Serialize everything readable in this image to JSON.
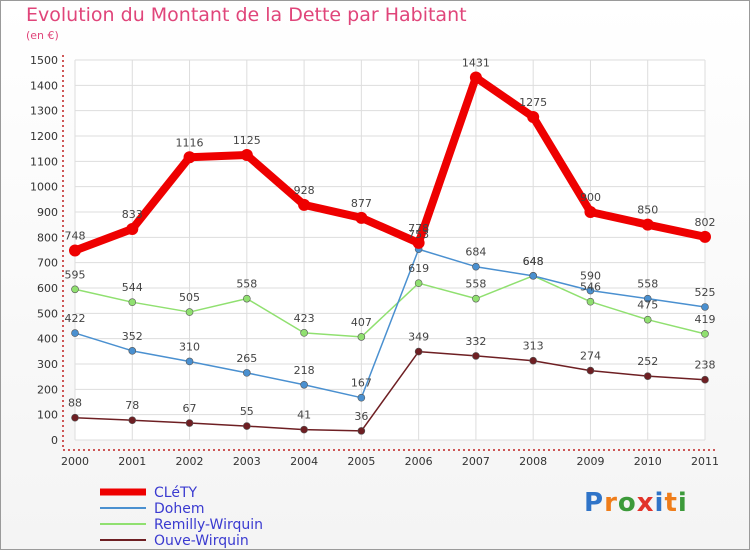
{
  "header": {
    "title": "Evolution du Montant de la Dette par Habitant",
    "subtitle": "(en €)"
  },
  "logo": {
    "letters": [
      "P",
      "r",
      "o",
      "x",
      "i",
      "t",
      "i"
    ],
    "colors": [
      "#2f74c8",
      "#ef7d1a",
      "#3c9a3a",
      "#e2332a",
      "#2f74c8",
      "#ef7d1a",
      "#3c9a3a"
    ]
  },
  "chart_data": {
    "type": "line",
    "title": "Evolution du Montant de la Dette par Habitant",
    "subtitle": "(en €)",
    "xlabel": "",
    "ylabel": "",
    "x": [
      "2000",
      "2001",
      "2002",
      "2003",
      "2004",
      "2005",
      "2006",
      "2007",
      "2008",
      "2009",
      "2010",
      "2011"
    ],
    "ylim": [
      0,
      1500
    ],
    "yticks": [
      0,
      100,
      200,
      300,
      400,
      500,
      600,
      700,
      800,
      900,
      1000,
      1100,
      1200,
      1300,
      1400,
      1500
    ],
    "grid": true,
    "legend_position": "bottom-left",
    "series": [
      {
        "name": "CLéTY",
        "color": "#ee0000",
        "values": [
          748,
          833,
          1116,
          1125,
          928,
          877,
          778,
          1431,
          1275,
          900,
          850,
          802
        ]
      },
      {
        "name": "Dohem",
        "color": "#4a90d0",
        "values": [
          422,
          352,
          310,
          265,
          218,
          167,
          753,
          684,
          648,
          590,
          558,
          525
        ]
      },
      {
        "name": "Remilly-Wirquin",
        "color": "#90e070",
        "values": [
          595,
          544,
          505,
          558,
          423,
          407,
          619,
          558,
          648,
          546,
          475,
          419
        ]
      },
      {
        "name": "Ouve-Wirquin",
        "color": "#6e1f23",
        "values": [
          88,
          78,
          67,
          55,
          41,
          36,
          349,
          332,
          313,
          274,
          252,
          238
        ]
      }
    ]
  }
}
